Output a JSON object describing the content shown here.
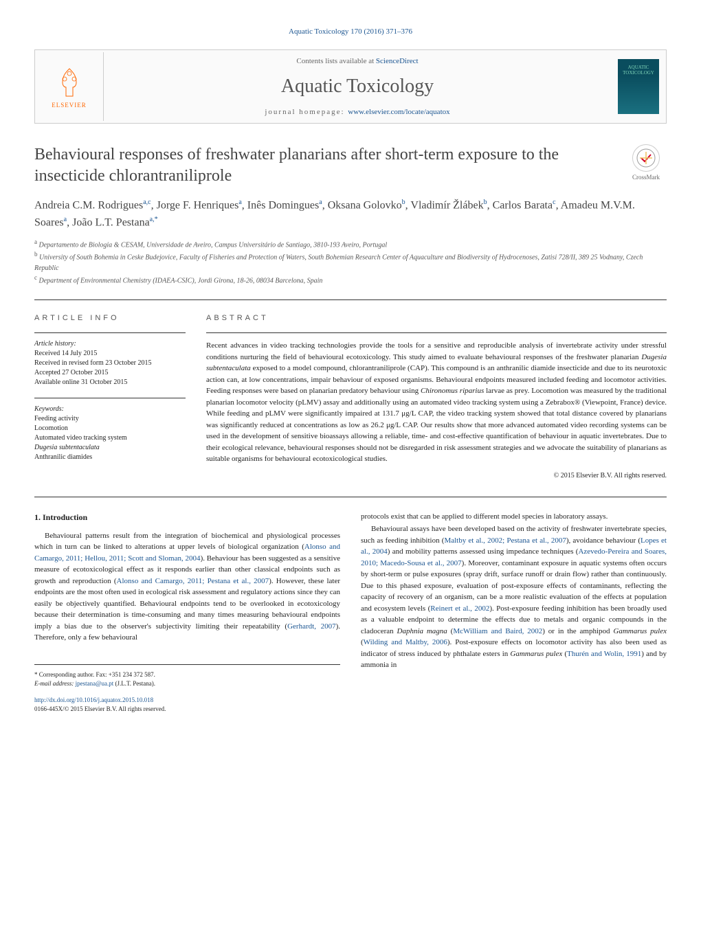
{
  "journal_ref": "Aquatic Toxicology 170 (2016) 371–376",
  "header": {
    "contents_text": "Contents lists available at ",
    "contents_link": "ScienceDirect",
    "journal_title": "Aquatic Toxicology",
    "homepage_label": "journal homepage: ",
    "homepage_url": "www.elsevier.com/locate/aquatox",
    "publisher": "ELSEVIER",
    "cover_line1": "AQUATIC",
    "cover_line2": "TOXICOLOGY"
  },
  "crossmark": "CrossMark",
  "article": {
    "title": "Behavioural responses of freshwater planarians after short-term exposure to the insecticide chlorantraniliprole",
    "authors_html": "Andreia C.M. Rodrigues<sup>a,c</sup>, Jorge F. Henriques<sup>a</sup>, Inês Domingues<sup>a</sup>, Oksana Golovko<sup>b</sup>, Vladimír Žlábek<sup>b</sup>, Carlos Barata<sup>c</sup>, Amadeu M.V.M. Soares<sup>a</sup>, João L.T. Pestana<sup>a,*</sup>",
    "affiliations": [
      {
        "sup": "a",
        "text": "Departamento de Biologia & CESAM, Universidade de Aveiro, Campus Universitário de Santiago, 3810-193 Aveiro, Portugal"
      },
      {
        "sup": "b",
        "text": "University of South Bohemia in Ceske Budejovice, Faculty of Fisheries and Protection of Waters, South Bohemian Research Center of Aquaculture and Biodiversity of Hydrocenoses, Zatisi 728/II, 389 25 Vodnany, Czech Republic"
      },
      {
        "sup": "c",
        "text": "Department of Environmental Chemistry (IDAEA-CSIC), Jordi Girona, 18-26, 08034 Barcelona, Spain"
      }
    ]
  },
  "info": {
    "header": "article info",
    "history_label": "Article history:",
    "history": [
      "Received 14 July 2015",
      "Received in revised form 23 October 2015",
      "Accepted 27 October 2015",
      "Available online 31 October 2015"
    ],
    "keywords_label": "Keywords:",
    "keywords": [
      "Feeding activity",
      "Locomotion",
      "Automated video tracking system",
      "Dugesia subtentaculata",
      "Anthranilic diamides"
    ]
  },
  "abstract": {
    "header": "abstract",
    "text": "Recent advances in video tracking technologies provide the tools for a sensitive and reproducible analysis of invertebrate activity under stressful conditions nurturing the field of behavioural ecotoxicology. This study aimed to evaluate behavioural responses of the freshwater planarian Dugesia subtentaculata exposed to a model compound, chlorantraniliprole (CAP). This compound is an anthranilic diamide insecticide and due to its neurotoxic action can, at low concentrations, impair behaviour of exposed organisms. Behavioural endpoints measured included feeding and locomotor activities. Feeding responses were based on planarian predatory behaviour using Chironomus riparius larvae as prey. Locomotion was measured by the traditional planarian locomotor velocity (pLMV) assay and additionally using an automated video tracking system using a Zebrabox® (Viewpoint, France) device. While feeding and pLMV were significantly impaired at 131.7 μg/L CAP, the video tracking system showed that total distance covered by planarians was significantly reduced at concentrations as low as 26.2 μg/L CAP. Our results show that more advanced automated video recording systems can be used in the development of sensitive bioassays allowing a reliable, time- and cost-effective quantification of behaviour in aquatic invertebrates. Due to their ecological relevance, behavioural responses should not be disregarded in risk assessment strategies and we advocate the suitability of planarians as suitable organisms for behavioural ecotoxicological studies.",
    "copyright": "© 2015 Elsevier B.V. All rights reserved."
  },
  "body": {
    "section_heading": "1. Introduction",
    "col1_p1": "Behavioural patterns result from the integration of biochemical and physiological processes which in turn can be linked to alterations at upper levels of biological organization (Alonso and Camargo, 2011; Hellou, 2011; Scott and Sloman, 2004). Behaviour has been suggested as a sensitive measure of ecotoxicological effect as it responds earlier than other classical endpoints such as growth and reproduction (Alonso and Camargo, 2011; Pestana et al., 2007). However, these later endpoints are the most often used in ecological risk assessment and regulatory actions since they can easily be objectively quantified. Behavioural endpoints tend to be overlooked in ecotoxicology because their determination is time-consuming and many times measuring behavioural endpoints imply a bias due to the observer's subjectivity limiting their repeatability (Gerhardt, 2007). Therefore, only a few behavioural",
    "col2_p1": "protocols exist that can be applied to different model species in laboratory assays.",
    "col2_p2": "Behavioural assays have been developed based on the activity of freshwater invertebrate species, such as feeding inhibition (Maltby et al., 2002; Pestana et al., 2007), avoidance behaviour (Lopes et al., 2004) and mobility patterns assessed using impedance techniques (Azevedo-Pereira and Soares, 2010; Macedo-Sousa et al., 2007). Moreover, contaminant exposure in aquatic systems often occurs by short-term or pulse exposures (spray drift, surface runoff or drain flow) rather than continuously. Due to this phased exposure, evaluation of post-exposure effects of contaminants, reflecting the capacity of recovery of an organism, can be a more realistic evaluation of the effects at population and ecosystem levels (Reinert et al., 2002). Post-exposure feeding inhibition has been broadly used as a valuable endpoint to determine the effects due to metals and organic compounds in the cladoceran Daphnia magna (McWilliam and Baird, 2002) or in the amphipod Gammarus pulex (Wilding and Maltby, 2006). Post-exposure effects on locomotor activity has also been used as indicator of stress induced by phthalate esters in Gammarus pulex (Thurén and Wolin, 1991) and by ammonia in"
  },
  "footer": {
    "corr_label": "* Corresponding author. Fax: +351 234 372 587.",
    "email_label": "E-mail address: ",
    "email": "jpestana@ua.pt",
    "email_name": " (J.L.T. Pestana).",
    "doi": "http://dx.doi.org/10.1016/j.aquatox.2015.10.018",
    "issn": "0166-445X/© 2015 Elsevier B.V. All rights reserved."
  },
  "colors": {
    "link": "#1a5490",
    "orange": "#ff6600",
    "cover_bg": "#0a4d5e",
    "cover_text": "#7fd4b8"
  }
}
